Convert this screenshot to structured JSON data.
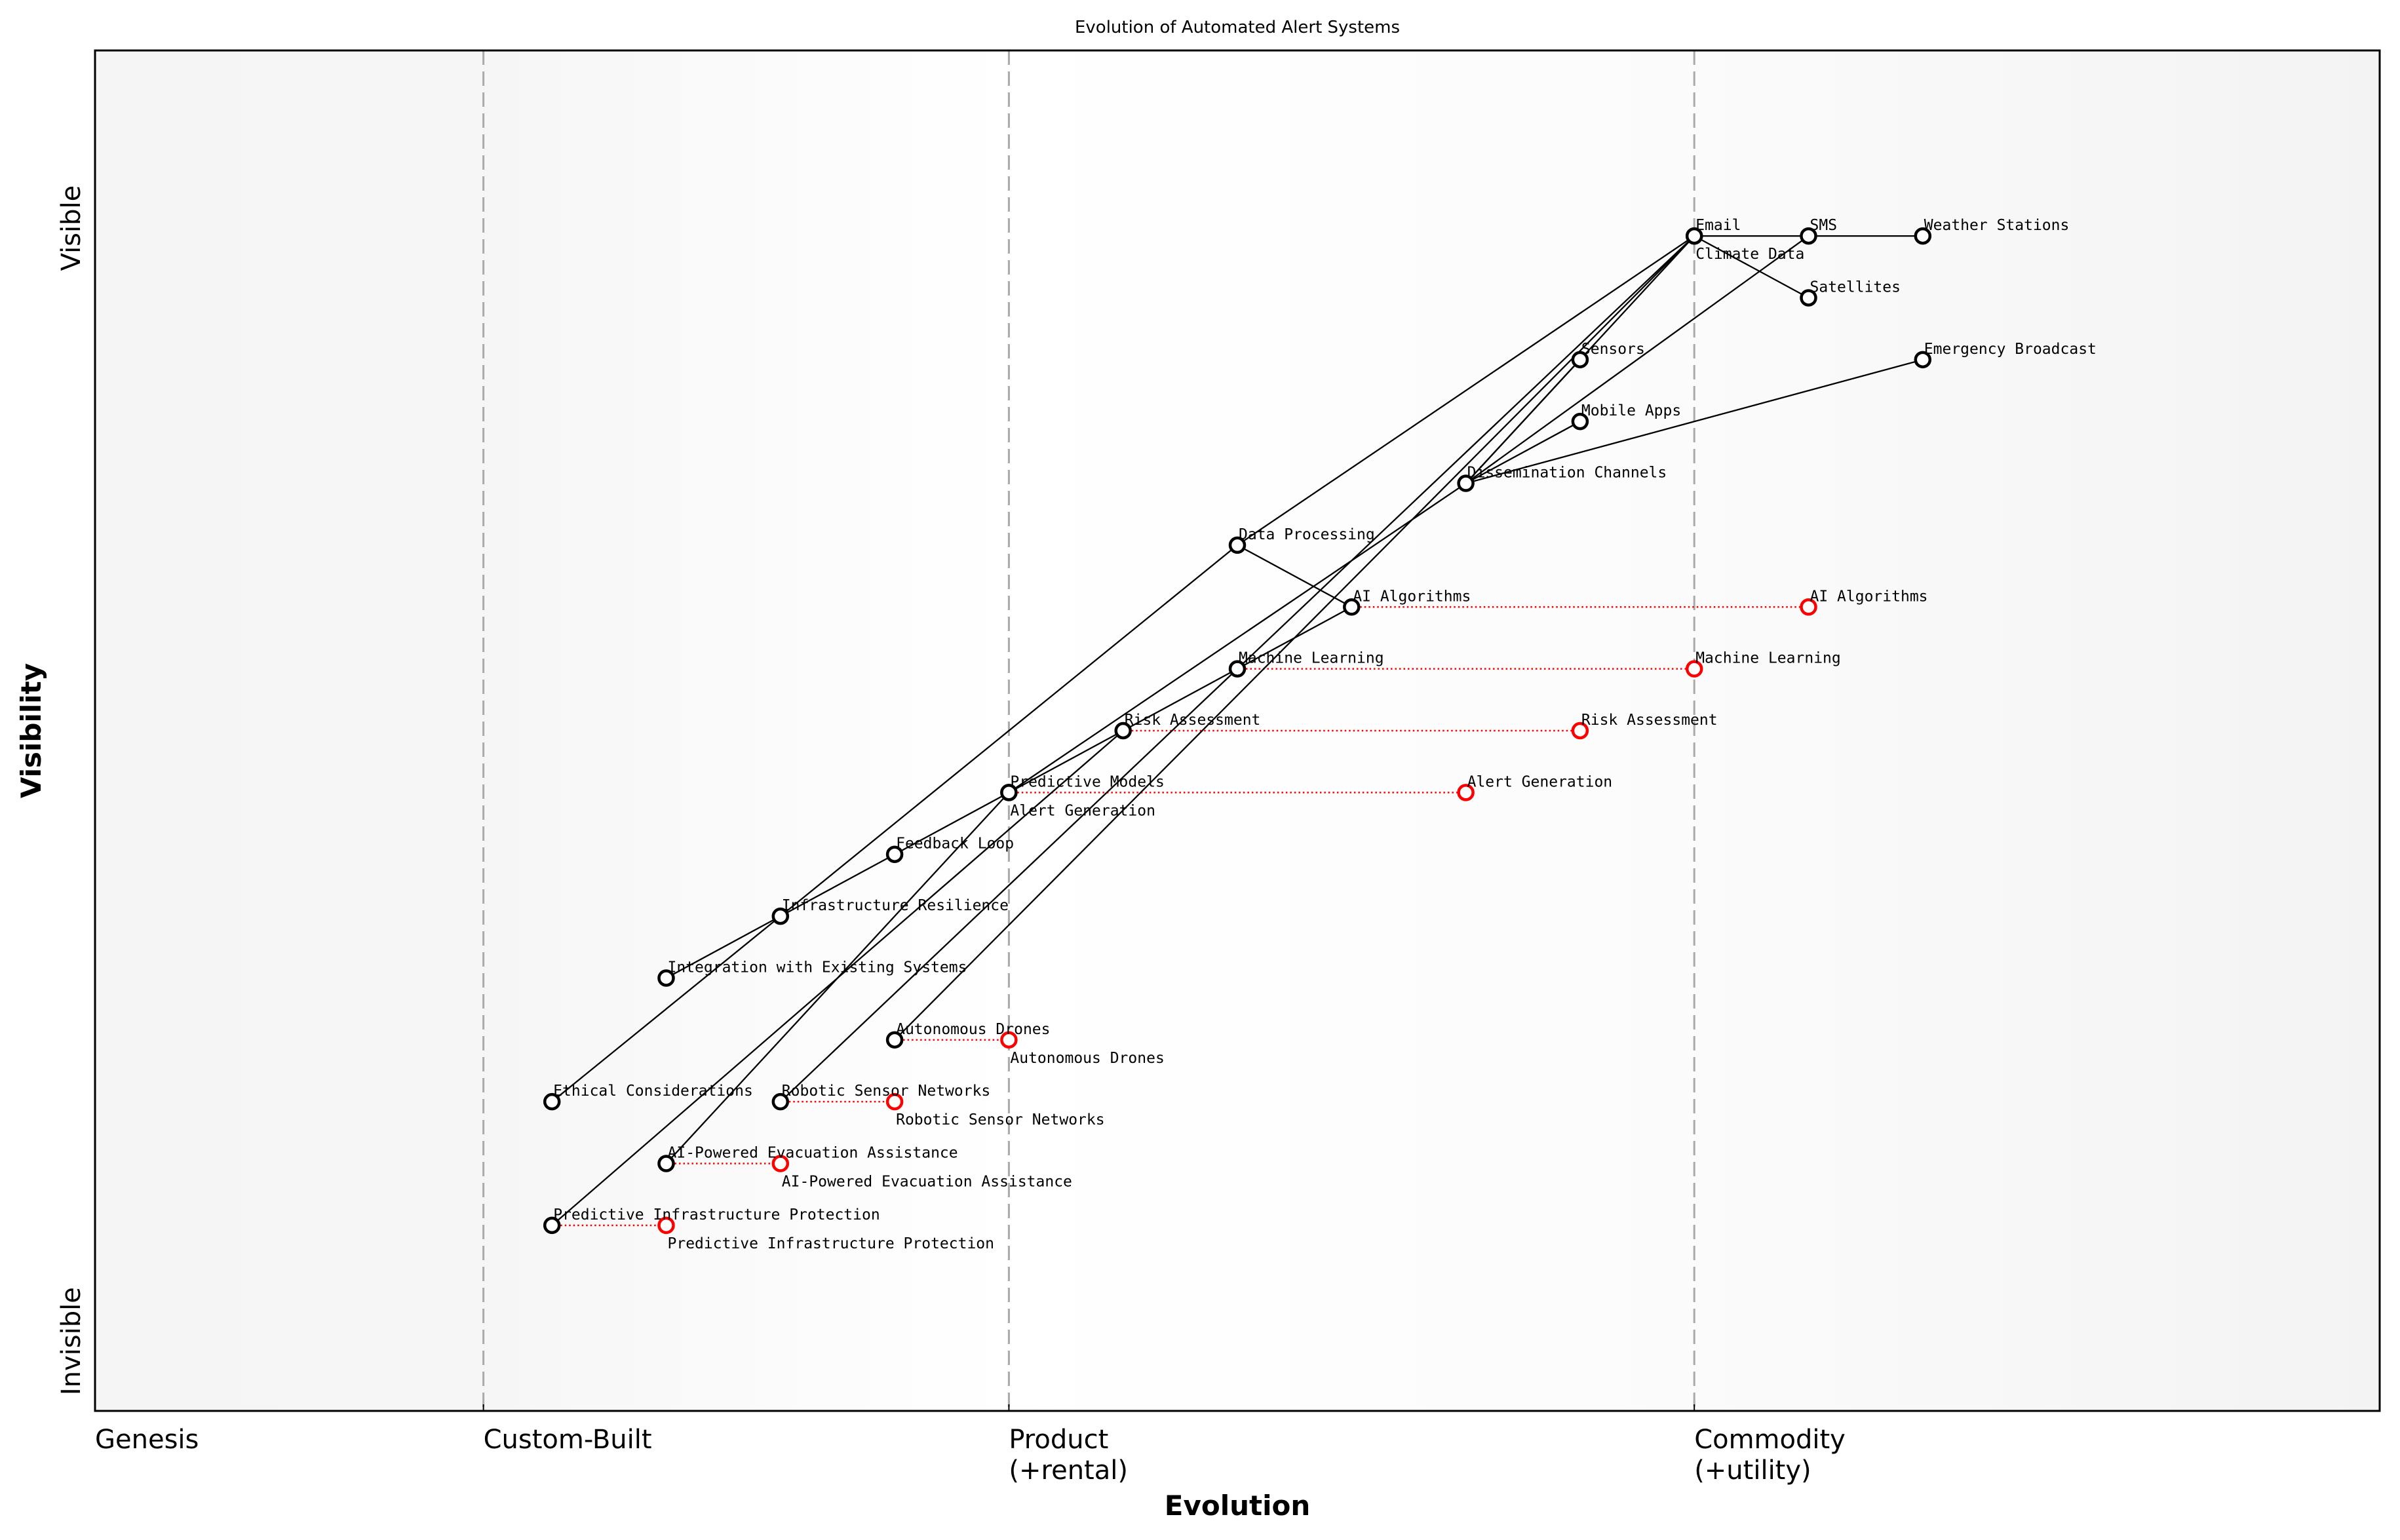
{
  "chart_data": {
    "type": "wardley-map",
    "title": "Evolution of Automated Alert Systems",
    "xlabel": "Evolution",
    "ylabel": "Visibility",
    "xlim": [
      0,
      1
    ],
    "ylim": [
      -0.05,
      1.05
    ],
    "x_stages": [
      {
        "label": "Genesis",
        "x": 0.0
      },
      {
        "label": "Custom-Built",
        "x": 0.17
      },
      {
        "label": "Product\n(+rental)",
        "x": 0.4
      },
      {
        "label": "Commodity\n(+utility)",
        "x": 0.7
      }
    ],
    "stage_dividers": [
      0.17,
      0.4,
      0.7
    ],
    "y_ticks": [
      {
        "label": "Visible",
        "y": 0.9
      },
      {
        "label": "Invisible",
        "y": 0.0
      }
    ],
    "colors": {
      "node": "#000000",
      "evolved": "#ff0000",
      "divider": "#aaaaaa"
    },
    "components": [
      {
        "name": "Email",
        "x": 0.7,
        "y": 0.9
      },
      {
        "name": "Climate Data",
        "x": 0.7,
        "y": 0.9
      },
      {
        "name": "SMS",
        "x": 0.75,
        "y": 0.9
      },
      {
        "name": "Weather Stations",
        "x": 0.8,
        "y": 0.9
      },
      {
        "name": "Satellites",
        "x": 0.75,
        "y": 0.85
      },
      {
        "name": "Sensors",
        "x": 0.65,
        "y": 0.8
      },
      {
        "name": "Emergency Broadcast",
        "x": 0.8,
        "y": 0.8
      },
      {
        "name": "Mobile Apps",
        "x": 0.65,
        "y": 0.75
      },
      {
        "name": "Dissemination Channels",
        "x": 0.6,
        "y": 0.7
      },
      {
        "name": "Data Processing",
        "x": 0.5,
        "y": 0.65
      },
      {
        "name": "AI Algorithms",
        "x": 0.55,
        "y": 0.6
      },
      {
        "name": "Machine Learning",
        "x": 0.5,
        "y": 0.55
      },
      {
        "name": "Risk Assessment",
        "x": 0.45,
        "y": 0.5
      },
      {
        "name": "Predictive Models",
        "x": 0.4,
        "y": 0.45
      },
      {
        "name": "Alert Generation",
        "x": 0.4,
        "y": 0.45
      },
      {
        "name": "Feedback Loop",
        "x": 0.35,
        "y": 0.4
      },
      {
        "name": "Infrastructure Resilience",
        "x": 0.3,
        "y": 0.35
      },
      {
        "name": "Integration with Existing Systems",
        "x": 0.25,
        "y": 0.3
      },
      {
        "name": "Autonomous Drones",
        "x": 0.35,
        "y": 0.25
      },
      {
        "name": "Ethical Considerations",
        "x": 0.2,
        "y": 0.2
      },
      {
        "name": "Robotic Sensor Networks",
        "x": 0.3,
        "y": 0.2
      },
      {
        "name": "AI-Powered Evacuation Assistance",
        "x": 0.25,
        "y": 0.15
      },
      {
        "name": "Predictive Infrastructure Protection",
        "x": 0.2,
        "y": 0.1
      }
    ],
    "links": [
      [
        "Email",
        "SMS"
      ],
      [
        "SMS",
        "Weather Stations"
      ],
      [
        "Climate Data",
        "Satellites"
      ],
      [
        "Dissemination Channels",
        "SMS"
      ],
      [
        "Dissemination Channels",
        "Email"
      ],
      [
        "Dissemination Channels",
        "Sensors"
      ],
      [
        "Dissemination Channels",
        "Mobile Apps"
      ],
      [
        "Dissemination Channels",
        "Emergency Broadcast"
      ],
      [
        "Data Processing",
        "Climate Data"
      ],
      [
        "Data Processing",
        "AI Algorithms"
      ],
      [
        "Machine Learning",
        "AI Algorithms"
      ],
      [
        "Machine Learning",
        "Climate Data"
      ],
      [
        "Risk Assessment",
        "Machine Learning"
      ],
      [
        "Predictive Models",
        "Risk Assessment"
      ],
      [
        "Alert Generation",
        "Dissemination Channels"
      ],
      [
        "Feedback Loop",
        "Predictive Models"
      ],
      [
        "Infrastructure Resilience",
        "Feedback Loop"
      ],
      [
        "Infrastructure Resilience",
        "Data Processing"
      ],
      [
        "Integration with Existing Systems",
        "Infrastructure Resilience"
      ],
      [
        "Ethical Considerations",
        "Infrastructure Resilience"
      ],
      [
        "Autonomous Drones",
        "Climate Data"
      ],
      [
        "Robotic Sensor Networks",
        "Machine Learning"
      ],
      [
        "AI-Powered Evacuation Assistance",
        "Predictive Models"
      ],
      [
        "Predictive Infrastructure Protection",
        "Risk Assessment"
      ]
    ],
    "evolutions": [
      {
        "name": "AI Algorithms",
        "from_x": 0.55,
        "to_x": 0.75,
        "y": 0.6
      },
      {
        "name": "Machine Learning",
        "from_x": 0.5,
        "to_x": 0.7,
        "y": 0.55
      },
      {
        "name": "Risk Assessment",
        "from_x": 0.45,
        "to_x": 0.65,
        "y": 0.5
      },
      {
        "name": "Alert Generation",
        "from_x": 0.4,
        "to_x": 0.6,
        "y": 0.45
      },
      {
        "name": "Autonomous Drones",
        "from_x": 0.35,
        "to_x": 0.4,
        "y": 0.25
      },
      {
        "name": "Robotic Sensor Networks",
        "from_x": 0.3,
        "to_x": 0.35,
        "y": 0.2
      },
      {
        "name": "AI-Powered Evacuation Assistance",
        "from_x": 0.25,
        "to_x": 0.3,
        "y": 0.15
      },
      {
        "name": "Predictive Infrastructure Protection",
        "from_x": 0.2,
        "to_x": 0.25,
        "y": 0.1
      }
    ]
  }
}
